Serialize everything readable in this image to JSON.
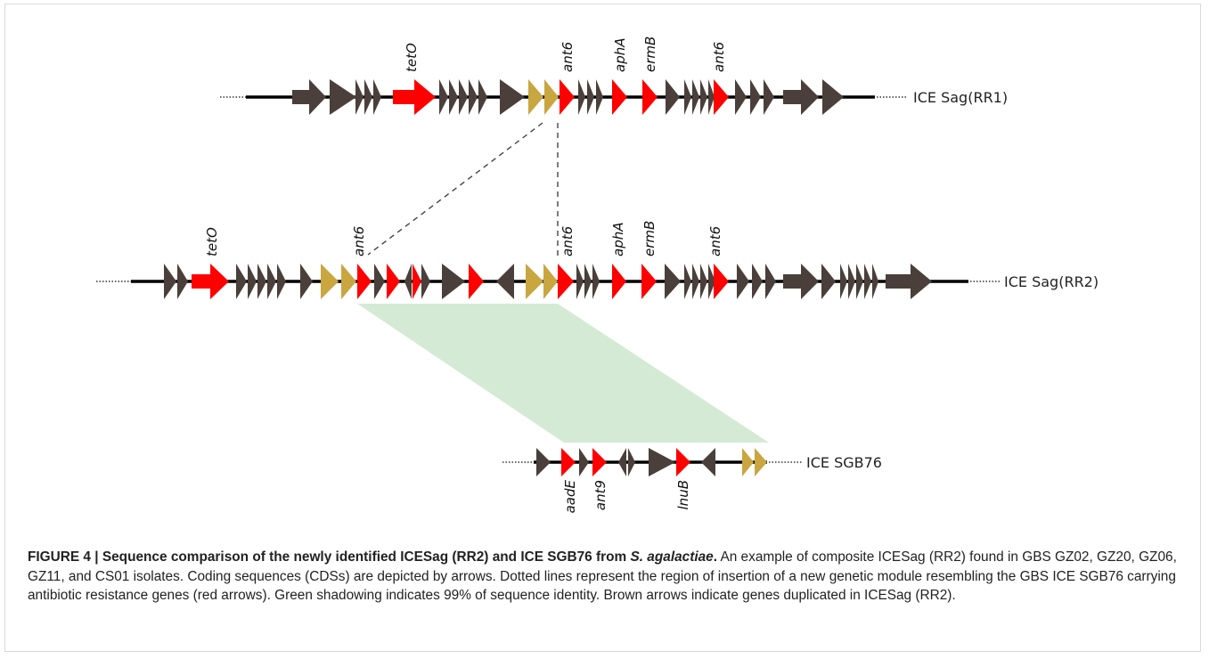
{
  "regions": [
    {
      "id": "rr1",
      "label": "ICE Sag(RR1)"
    },
    {
      "id": "rr2",
      "label": "ICE Sag(RR2)"
    },
    {
      "id": "sgb76",
      "label": "ICE SGB76"
    }
  ],
  "gene_labels": {
    "rr1": [
      "tetO",
      "ant6",
      "aphA",
      "ermB",
      "ant6"
    ],
    "rr2": [
      "tetO",
      "ant6",
      "ant6",
      "aphA",
      "ermB",
      "ant6"
    ],
    "sgb76": [
      "aadE",
      "ant9",
      "lnuB"
    ]
  },
  "legend_colors": {
    "resistance_gene": "#ff0000",
    "duplicated_gene": "#c9a640",
    "other_cds": "#4a3f3a",
    "identity_shading": "#cfe8cf"
  },
  "caption": {
    "lead_1": "FIGURE 4 | Sequence comparison of the newly identified ICESag (RR2) and ICE SGB76 from ",
    "species": "S. agalactiae",
    "lead_2": ".",
    "body": " An example of composite ICESag (RR2) found in GBS GZ02, GZ20, GZ06, GZ11, and CS01 isolates. Coding sequences (CDSs) are depicted by arrows. Dotted lines represent the region of insertion of a new genetic module resembling the GBS ICE SGB76 carrying antibiotic resistance genes (red arrows). Green shadowing indicates 99% of sequence identity. Brown arrows indicate genes duplicated in ICESag (RR2)."
  }
}
